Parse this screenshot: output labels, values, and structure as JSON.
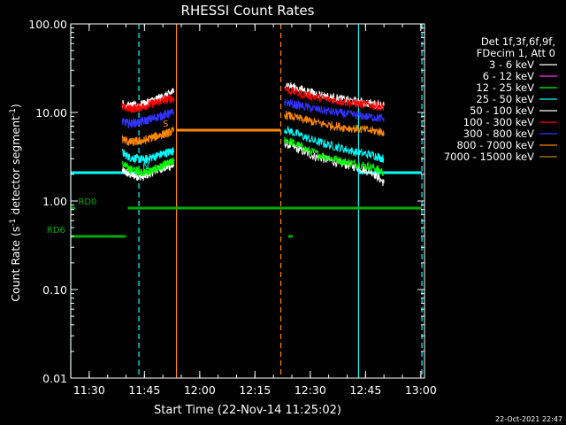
{
  "chart_data": {
    "type": "line",
    "title": "RHESSI Count Rates",
    "xlabel": "Start Time (22-Nov-14 11:25:02)",
    "ylabel_main": "Count Rate (s",
    "ylabel_sup": "-1",
    "ylabel_tail": " detector segment",
    "ylabel_sup2": "-1",
    "ylabel_close": ")",
    "x_units": "minutes since 11:25:02",
    "xlim": [
      0,
      96
    ],
    "ylim": [
      0.01,
      100
    ],
    "y_scale": "log",
    "y_ticks": [
      {
        "value": 100,
        "label": "100.00"
      },
      {
        "value": 10,
        "label": "10.00"
      },
      {
        "value": 1,
        "label": "1.00"
      },
      {
        "value": 0.1,
        "label": "0.10"
      },
      {
        "value": 0.01,
        "label": "0.01"
      }
    ],
    "x_ticks": [
      {
        "value": 5,
        "label": "11:30"
      },
      {
        "value": 20,
        "label": "11:45"
      },
      {
        "value": 35,
        "label": "12:00"
      },
      {
        "value": 50,
        "label": "12:15"
      },
      {
        "value": 65,
        "label": "12:30"
      },
      {
        "value": 80,
        "label": "12:45"
      },
      {
        "value": 95,
        "label": "13:00"
      }
    ],
    "legend_header": [
      "Det 1f,3f,6f,9f,",
      "FDecim 1, Att 0"
    ],
    "legend_position": "right",
    "series": [
      {
        "name": "3 - 6 keV",
        "color": "#ffffff",
        "segments": [
          {
            "x": [
              14,
              16,
              18,
              20,
              22,
              24,
              26,
              28
            ],
            "y": [
              2.2,
              2.0,
              1.9,
              1.9,
              2.1,
              2.3,
              2.4,
              2.5
            ]
          },
          {
            "x": [
              58,
              62,
              66,
              70,
              74,
              78,
              82,
              85
            ],
            "y": [
              4.5,
              3.8,
              3.2,
              2.9,
              2.6,
              2.4,
              2.1,
              1.6
            ]
          }
        ]
      },
      {
        "name": "6 - 12 keV",
        "color": "#ff33ff",
        "segments": []
      },
      {
        "name": "12 - 25 keV",
        "color": "#00ff00",
        "segments": [
          {
            "x": [
              14,
              16,
              18,
              20,
              22,
              24,
              26,
              28
            ],
            "y": [
              2.6,
              2.3,
              2.2,
              2.1,
              2.2,
              2.4,
              2.6,
              2.8
            ]
          },
          {
            "x": [
              58,
              62,
              66,
              70,
              74,
              78,
              82,
              85
            ],
            "y": [
              5.0,
              4.2,
              3.5,
              3.1,
              2.8,
              2.6,
              2.4,
              2.1
            ]
          }
        ]
      },
      {
        "name": "25 - 50 keV",
        "color": "#00ffff",
        "segments": [
          {
            "x": [
              14,
              16,
              18,
              20,
              22,
              24,
              26,
              28
            ],
            "y": [
              3.5,
              3.1,
              3.0,
              2.9,
              3.1,
              3.3,
              3.5,
              3.7
            ]
          },
          {
            "x": [
              58,
              62,
              66,
              70,
              74,
              78,
              82,
              85
            ],
            "y": [
              6.5,
              5.6,
              4.8,
              4.3,
              3.9,
              3.5,
              3.3,
              3.0
            ]
          }
        ]
      },
      {
        "name": "50 - 100 keV",
        "color": "#ffffff",
        "segments": [
          {
            "x": [
              14,
              16,
              18,
              20,
              22,
              24,
              26,
              28
            ],
            "y": [
              12.5,
              11.8,
              12.0,
              12.5,
              13.5,
              14.5,
              15.5,
              17.5
            ]
          },
          {
            "x": [
              58,
              62,
              66,
              70,
              74,
              78,
              82,
              85
            ],
            "y": [
              21.0,
              18.5,
              16.5,
              15.0,
              14.0,
              13.2,
              12.5,
              12.0
            ]
          }
        ]
      },
      {
        "name": "100 - 300 keV",
        "color": "#ff0000",
        "segments": [
          {
            "x": [
              14,
              16,
              18,
              20,
              22,
              24,
              26,
              28
            ],
            "y": [
              11.5,
              11.0,
              11.2,
              11.8,
              12.5,
              13.3,
              14.0,
              14.5
            ]
          },
          {
            "x": [
              58,
              62,
              66,
              70,
              74,
              78,
              82,
              85
            ],
            "y": [
              18.5,
              16.5,
              15.0,
              14.0,
              13.2,
              12.5,
              12.0,
              11.5
            ]
          }
        ]
      },
      {
        "name": "300 - 800 keV",
        "color": "#3333ff",
        "segments": [
          {
            "x": [
              14,
              16,
              18,
              20,
              22,
              24,
              26,
              28
            ],
            "y": [
              7.8,
              7.5,
              7.7,
              8.0,
              8.5,
              9.0,
              9.5,
              10.0
            ]
          },
          {
            "x": [
              58,
              62,
              66,
              70,
              74,
              78,
              82,
              85
            ],
            "y": [
              13.0,
              12.0,
              11.0,
              10.3,
              9.7,
              9.2,
              8.8,
              8.5
            ]
          }
        ]
      },
      {
        "name": "800 - 7000 keV",
        "color": "#ff8800",
        "segments": [
          {
            "x": [
              14,
              16,
              18,
              20,
              22,
              24,
              26,
              28
            ],
            "y": [
              5.0,
              4.6,
              4.7,
              4.8,
              5.2,
              5.5,
              5.8,
              6.2
            ]
          },
          {
            "x": [
              58,
              62,
              66,
              70,
              74,
              78,
              82,
              85
            ],
            "y": [
              9.5,
              8.5,
              7.8,
              7.2,
              6.8,
              6.5,
              6.2,
              6.0
            ]
          }
        ]
      },
      {
        "name": "7000 - 15000 keV",
        "color": "#aa8800",
        "segments": []
      }
    ],
    "vertical_lines": [
      {
        "x": 0,
        "color": "#00ffff",
        "style": "solid"
      },
      {
        "x": 18.5,
        "color": "#00ffff",
        "style": "dashed"
      },
      {
        "x": 28.7,
        "color": "#ff8800",
        "style": "solid"
      },
      {
        "x": 57.0,
        "color": "#ff8800",
        "style": "dashed"
      },
      {
        "x": 78.1,
        "color": "#00ffff",
        "style": "solid"
      },
      {
        "x": 95.3,
        "color": "#00ffff",
        "style": "dashed"
      }
    ],
    "state_bars": [
      {
        "label": "N",
        "label_x": 19.5,
        "color": "#00ffff",
        "y": 58,
        "segments": [
          [
            0,
            18.5
          ],
          [
            78.1,
            95.3
          ]
        ]
      },
      {
        "label": "S",
        "label_x": 25.0,
        "color": "#ff8800",
        "y": 70,
        "segments": [
          [
            28.7,
            57.0
          ]
        ]
      },
      {
        "label": "RD0",
        "label_x": 2.0,
        "color": "#00aa00",
        "y": 48,
        "segments": [
          [
            0,
            1.2
          ],
          [
            15.5,
            95.3
          ]
        ]
      },
      {
        "label": "RD6",
        "label_x": -6.5,
        "color": "#00aa00",
        "y": 40,
        "segments": [
          [
            0,
            15.0
          ],
          [
            59.0,
            60.3
          ]
        ]
      }
    ]
  },
  "timestamp": "22-Oct-2021 22:47"
}
